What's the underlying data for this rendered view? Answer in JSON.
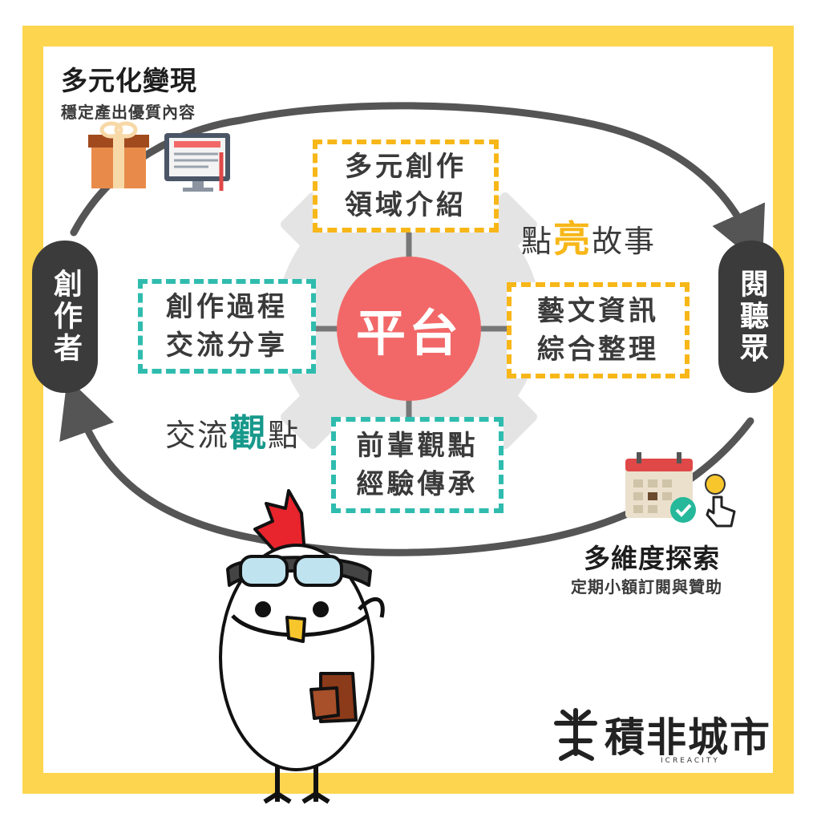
{
  "top_left": {
    "title": "多元化變現",
    "subtitle": "穩定產出優質內容"
  },
  "bottom_right": {
    "title": "多維度探索",
    "subtitle": "定期小額訂閱與贊助"
  },
  "left_node": "創作者",
  "right_node": "閱聽眾",
  "center": "平台",
  "boxes": {
    "top": [
      "多元創作",
      "領域介紹"
    ],
    "left": [
      "創作過程",
      "交流分享"
    ],
    "right": [
      "藝文資訊",
      "綜合整理"
    ],
    "bottom": [
      "前輩觀點",
      "經驗傳承"
    ]
  },
  "phrases": {
    "top_right": {
      "before": "點",
      "highlight": "亮",
      "after": "故事"
    },
    "bottom_left": {
      "before": "交流",
      "highlight": "觀",
      "after": "點"
    }
  },
  "logo": {
    "name": "積非城市",
    "subtitle": "ICREACITY"
  },
  "colors": {
    "frame": "#fdd54e",
    "hub": "#f26868",
    "yellow_box": "#f7b718",
    "teal_box": "#2fbcae",
    "node": "#3b3b3b"
  },
  "icons": [
    "gift-box-icon",
    "monitor-document-icon",
    "calendar-check-icon",
    "coin-tap-hand-icon",
    "rooster-mascot-icon",
    "gear-background-icon"
  ]
}
